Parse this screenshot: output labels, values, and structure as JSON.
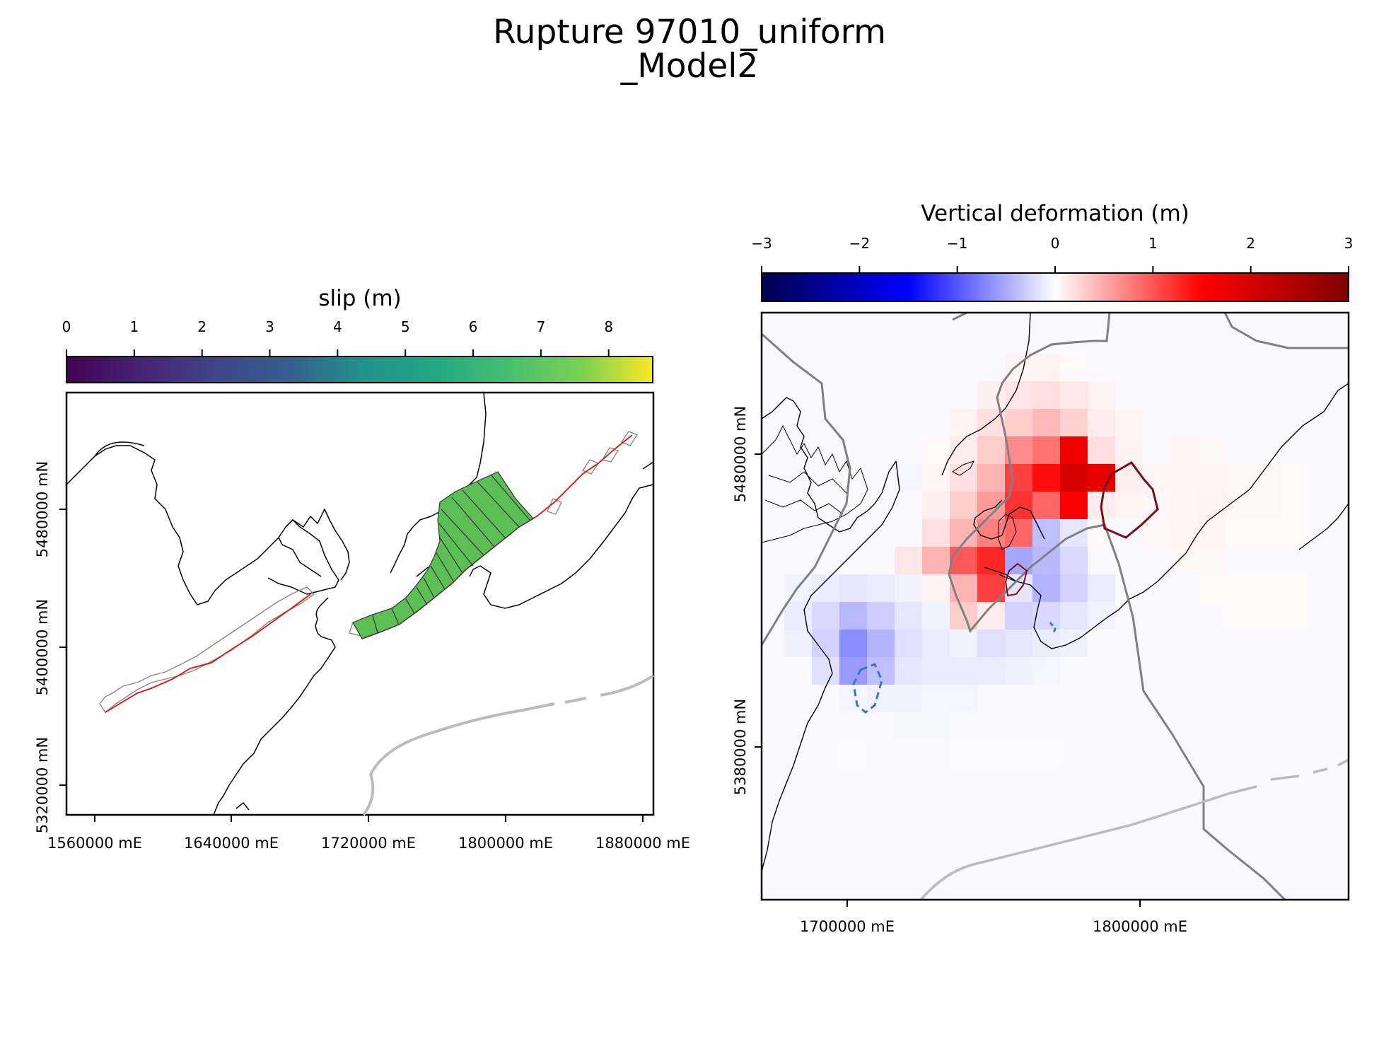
{
  "figure": {
    "title_line1": "Rupture 97010_uniform",
    "title_line2": "_Model2"
  },
  "left_panel": {
    "colorbar": {
      "title": "slip (m)",
      "ticks": [
        "0",
        "1",
        "2",
        "3",
        "4",
        "5",
        "6",
        "7",
        "8"
      ],
      "colormap": "viridis",
      "min": 0,
      "max": 8.65
    },
    "x_ticks": [
      "1560000 mE",
      "1640000 mE",
      "1720000 mE",
      "1800000 mE",
      "1880000 mE"
    ],
    "y_ticks": [
      "5480000 mN",
      "5400000 mN",
      "5320000 mN"
    ],
    "ruptured_patch_color": "#5cbf55",
    "fault_trace_color": "#e01010",
    "unruptured_patch_color": "#888888"
  },
  "right_panel": {
    "colorbar": {
      "title": "Vertical deformation (m)",
      "ticks": [
        "−3",
        "−2",
        "−1",
        "0",
        "1",
        "2",
        "3"
      ],
      "colormap": "seismic",
      "min": -3,
      "max": 3
    },
    "x_ticks": [
      "1700000 mE",
      "1800000 mE"
    ],
    "y_ticks": [
      "5480000 mN",
      "5380000 mN"
    ],
    "uplift_contour_color": "#7a0d1a",
    "subsidence_contour_color": "#3a7ab0",
    "boundary_line_color": "#808080"
  }
}
